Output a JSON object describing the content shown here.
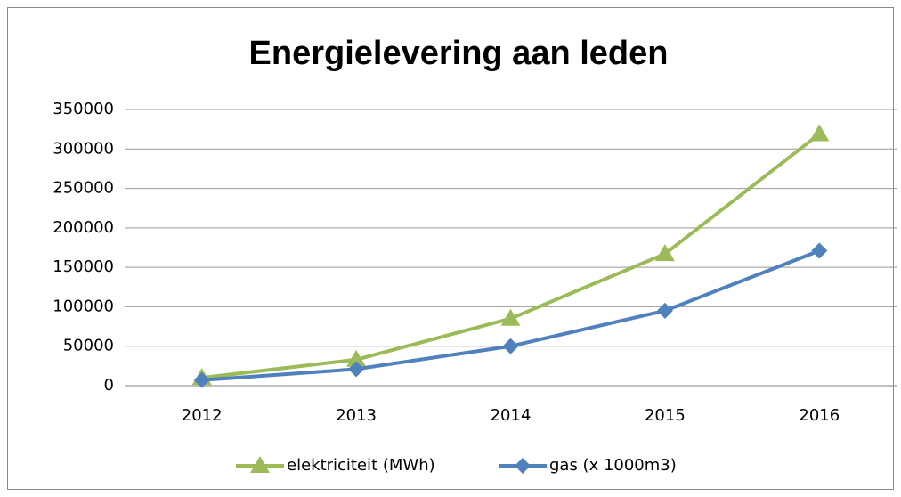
{
  "chart_data": {
    "type": "line",
    "title": "Energielevering aan leden",
    "categories": [
      "2012",
      "2013",
      "2014",
      "2015",
      "2016"
    ],
    "series": [
      {
        "name": "elektriciteit (MWh)",
        "color": "#9bbb59",
        "marker": "triangle",
        "values": [
          10000,
          33000,
          85000,
          167000,
          319000
        ]
      },
      {
        "name": "gas (x 1000m3)",
        "color": "#4f81bd",
        "marker": "diamond",
        "values": [
          7000,
          21000,
          50000,
          95000,
          171000
        ]
      }
    ],
    "ylim": [
      0,
      350000
    ],
    "yticks": [
      0,
      50000,
      100000,
      150000,
      200000,
      250000,
      300000,
      350000
    ],
    "grid": true,
    "legend": "bottom"
  }
}
